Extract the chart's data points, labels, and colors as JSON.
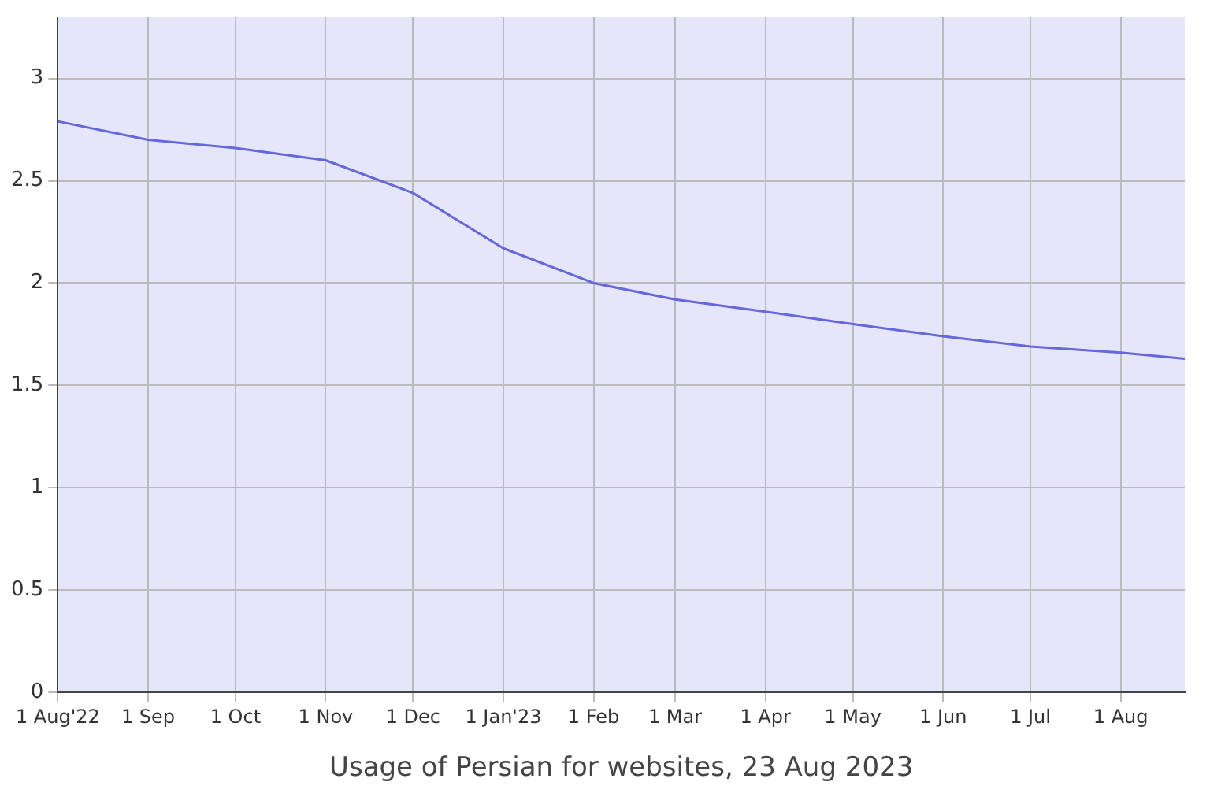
{
  "chart_data": {
    "type": "line",
    "annotations": [
      "Usage of Persian for websites, 23 Aug 2023"
    ],
    "x": [
      "2022-08-01",
      "2022-09-01",
      "2022-10-01",
      "2022-11-01",
      "2022-12-01",
      "2023-01-01",
      "2023-02-01",
      "2023-03-01",
      "2023-04-01",
      "2023-05-01",
      "2023-06-01",
      "2023-07-01",
      "2023-08-01",
      "2023-08-23"
    ],
    "series": [
      {
        "color": "#6666dd",
        "values": [
          2.79,
          2.7,
          2.66,
          2.6,
          2.44,
          2.17,
          2.0,
          1.92,
          1.86,
          1.8,
          1.74,
          1.69,
          1.66,
          1.63
        ]
      }
    ],
    "xlim": [
      "2022-08-01",
      "2023-08-23"
    ],
    "xticks": [
      {
        "value": "2022-08-01",
        "label": "1 Aug'22"
      },
      {
        "value": "2022-09-01",
        "label": "1 Sep"
      },
      {
        "value": "2022-10-01",
        "label": "1 Oct"
      },
      {
        "value": "2022-11-01",
        "label": "1 Nov"
      },
      {
        "value": "2022-12-01",
        "label": "1 Dec"
      },
      {
        "value": "2023-01-01",
        "label": "1 Jan'23"
      },
      {
        "value": "2023-02-01",
        "label": "1 Feb"
      },
      {
        "value": "2023-03-01",
        "label": "1 Mar"
      },
      {
        "value": "2023-04-01",
        "label": "1 Apr"
      },
      {
        "value": "2023-05-01",
        "label": "1 May"
      },
      {
        "value": "2023-06-01",
        "label": "1 Jun"
      },
      {
        "value": "2023-07-01",
        "label": "1 Jul"
      },
      {
        "value": "2023-08-01",
        "label": "1 Aug"
      }
    ],
    "ylim": [
      0,
      3.3
    ],
    "yticks": [
      0,
      0.5,
      1,
      1.5,
      2,
      2.5,
      3
    ],
    "grid": true,
    "legend": false,
    "marker": "none",
    "line_style": "solid"
  }
}
